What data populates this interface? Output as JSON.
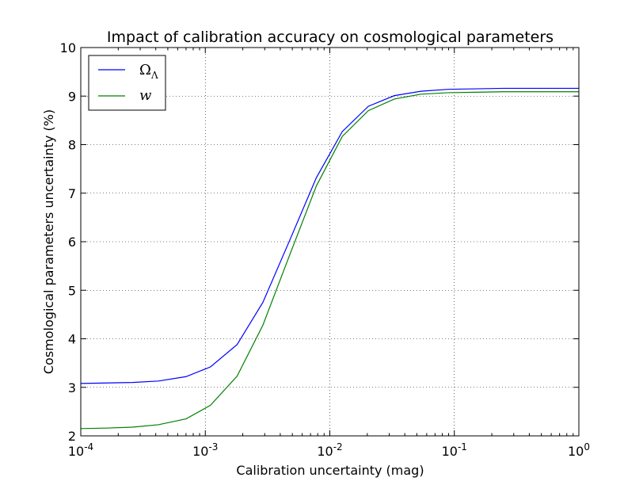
{
  "chart_data": {
    "type": "line",
    "title": "Impact of calibration accuracy on cosmological parameters",
    "xlabel": "Calibration uncertainty (mag)",
    "ylabel": "Cosmological parameters uncertainty (%)",
    "xscale": "log",
    "xlim": [
      0.0001,
      1
    ],
    "ylim": [
      2,
      10
    ],
    "grid": true,
    "legend_position": "top-left",
    "x_tick_labels": [
      {
        "base": "10",
        "exp": "-4"
      },
      {
        "base": "10",
        "exp": "-3"
      },
      {
        "base": "10",
        "exp": "-2"
      },
      {
        "base": "10",
        "exp": "-1"
      },
      {
        "base": "10",
        "exp": "0"
      }
    ],
    "y_tick_labels": [
      "2",
      "3",
      "4",
      "5",
      "6",
      "7",
      "8",
      "9",
      "10"
    ],
    "x": [
      0.0001,
      0.00016,
      0.00026,
      0.00042,
      0.0007,
      0.0011,
      0.0018,
      0.0029,
      0.0048,
      0.0078,
      0.0126,
      0.0204,
      0.033,
      0.054,
      0.09,
      0.15,
      0.25,
      0.4,
      1.0
    ],
    "series": [
      {
        "name": "Ω",
        "name_sub": "Λ",
        "color": "#0000ff",
        "values": [
          3.08,
          3.09,
          3.1,
          3.13,
          3.22,
          3.42,
          3.88,
          4.75,
          6.05,
          7.32,
          8.27,
          8.79,
          9.01,
          9.1,
          9.14,
          9.15,
          9.16,
          9.16,
          9.16
        ]
      },
      {
        "name": "w",
        "color": "#008000",
        "values": [
          2.15,
          2.16,
          2.18,
          2.23,
          2.35,
          2.63,
          3.23,
          4.28,
          5.75,
          7.15,
          8.17,
          8.7,
          8.94,
          9.04,
          9.07,
          9.08,
          9.09,
          9.09,
          9.09
        ]
      }
    ]
  }
}
